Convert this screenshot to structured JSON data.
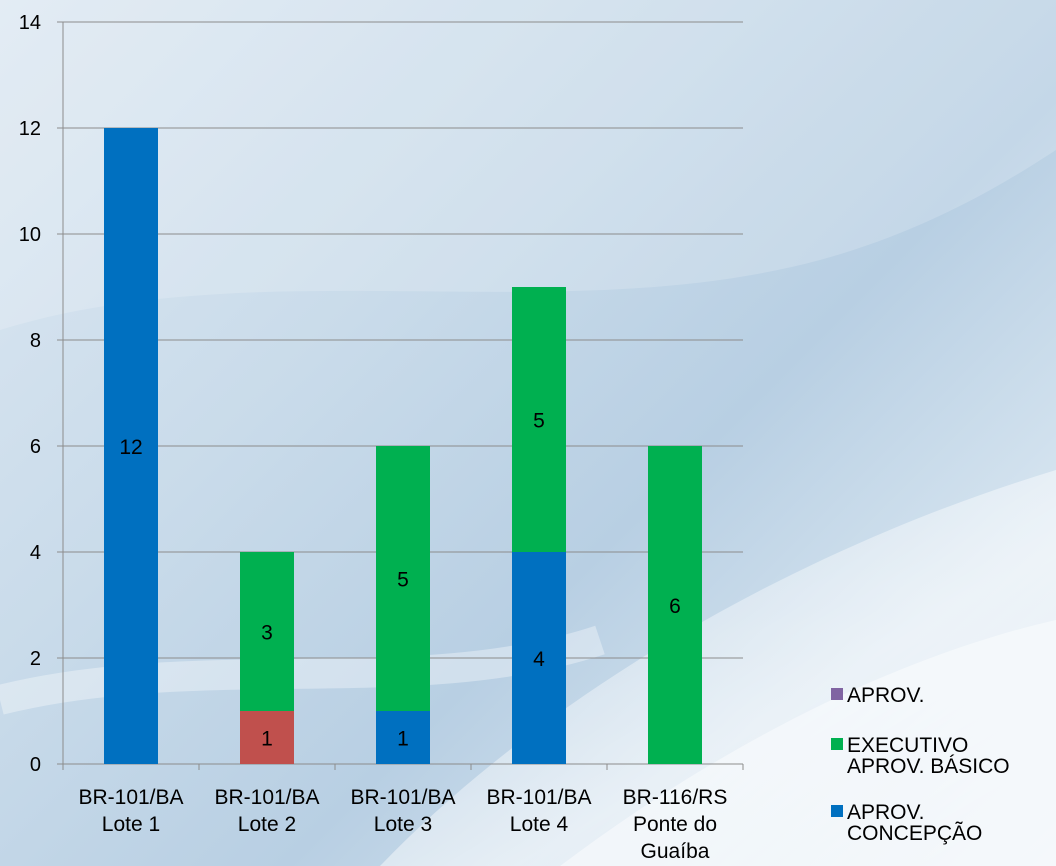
{
  "chart_data": {
    "type": "bar",
    "stacked": true,
    "categories": [
      [
        "BR-101/BA",
        "Lote 1"
      ],
      [
        "BR-101/BA",
        "Lote 2"
      ],
      [
        "BR-101/BA",
        "Lote 3"
      ],
      [
        "BR-101/BA",
        "Lote 4"
      ],
      [
        "BR-116/RS",
        "Ponte do",
        "Guaíba"
      ]
    ],
    "ylim": [
      0,
      14
    ],
    "yticks": [
      0,
      2,
      4,
      6,
      8,
      10,
      12,
      14
    ],
    "grid": true,
    "legend_position": "bottom-right",
    "series": [
      {
        "name": "APROV. CONCEPÇÃO",
        "legend_lines": [
          "APROV.",
          "CONCEPÇÃO"
        ],
        "color": "#0070c0",
        "values": [
          12,
          0,
          1,
          4,
          0
        ]
      },
      {
        "name": "",
        "color": "#c0504d",
        "values": [
          0,
          1,
          0,
          0,
          0
        ]
      },
      {
        "name": "EXECUTIVO APROV. BÁSICO",
        "legend_lines": [
          "EXECUTIVO",
          "APROV. BÁSICO"
        ],
        "color": "#00b050",
        "values": [
          0,
          3,
          5,
          5,
          6
        ]
      },
      {
        "name": "APROV.",
        "legend_lines": [
          "APROV."
        ],
        "color": "#8064a2",
        "values": [
          0,
          0,
          0,
          0,
          0
        ]
      }
    ],
    "data_labels": [
      {
        "category": 0,
        "series": 0,
        "text": "12"
      },
      {
        "category": 1,
        "series": 1,
        "text": "1"
      },
      {
        "category": 1,
        "series": 2,
        "text": "3"
      },
      {
        "category": 2,
        "series": 0,
        "text": "1"
      },
      {
        "category": 2,
        "series": 2,
        "text": "5"
      },
      {
        "category": 3,
        "series": 0,
        "text": "4"
      },
      {
        "category": 3,
        "series": 2,
        "text": "5"
      },
      {
        "category": 4,
        "series": 2,
        "text": "6"
      }
    ],
    "legend_order": [
      3,
      2,
      0
    ]
  }
}
